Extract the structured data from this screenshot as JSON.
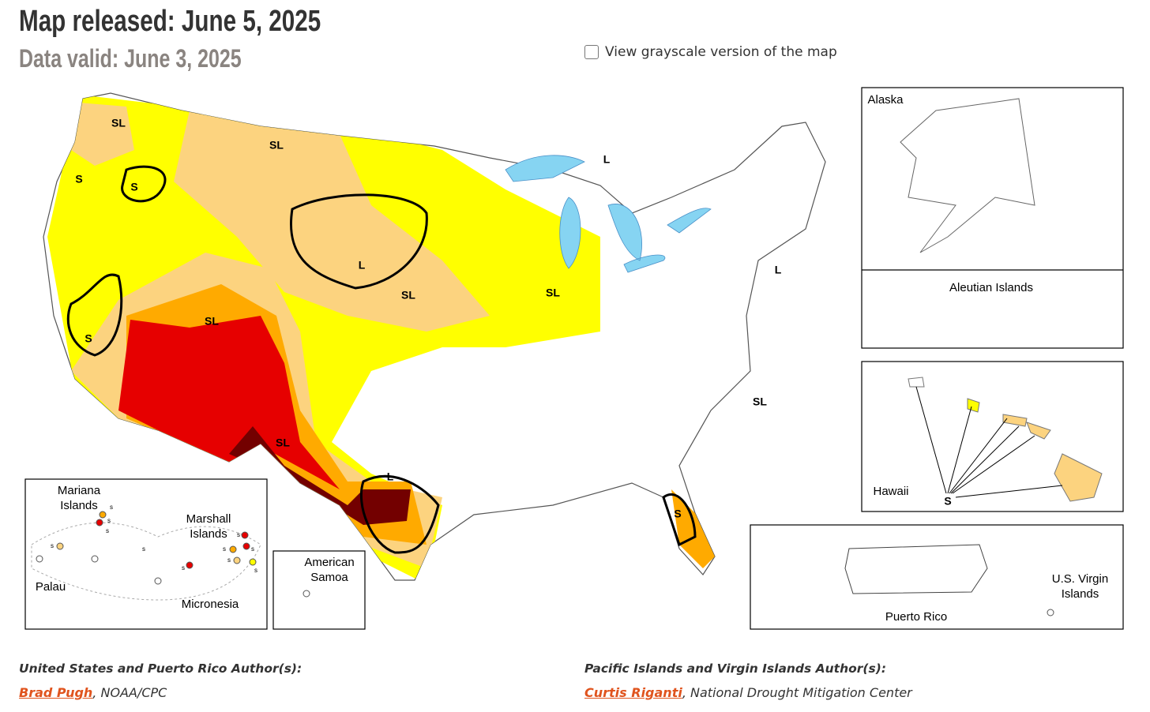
{
  "header": {
    "title": "Map released: June 5, 2025",
    "subtitle": "Data valid: June 3, 2025"
  },
  "controls": {
    "grayscale_toggle": "View grayscale version of the map"
  },
  "map": {
    "impact_labels": [
      "SL",
      "SL",
      "S",
      "S",
      "L",
      "L",
      "SL",
      "SL",
      "SL",
      "S",
      "SL",
      "L",
      "S",
      "L",
      "SL",
      "S"
    ],
    "insets": {
      "alaska": "Alaska",
      "aleutian": "Aleutian Islands",
      "hawaii": "Hawaii",
      "puerto_rico": "Puerto Rico",
      "virgin_islands": "U.S. Virgin Islands",
      "american_samoa": "American Samoa",
      "mariana": "Mariana Islands",
      "marshall": "Marshall Islands",
      "palau": "Palau",
      "micronesia": "Micronesia"
    },
    "pacific_impact_labels": [
      "s",
      "s",
      "s",
      "s",
      "s",
      "s",
      "s",
      "s",
      "s",
      "s",
      "s"
    ]
  },
  "footer": {
    "us_authors_label": "United States and Puerto Rico Author(s):",
    "us_author_name": "Brad Pugh",
    "us_author_affiliation": ", NOAA/CPC",
    "pacific_authors_label": "Pacific Islands and Virgin Islands Author(s):",
    "pacific_author_name": "Curtis Riganti",
    "pacific_author_affiliation": ", National Drought Mitigation Center"
  }
}
